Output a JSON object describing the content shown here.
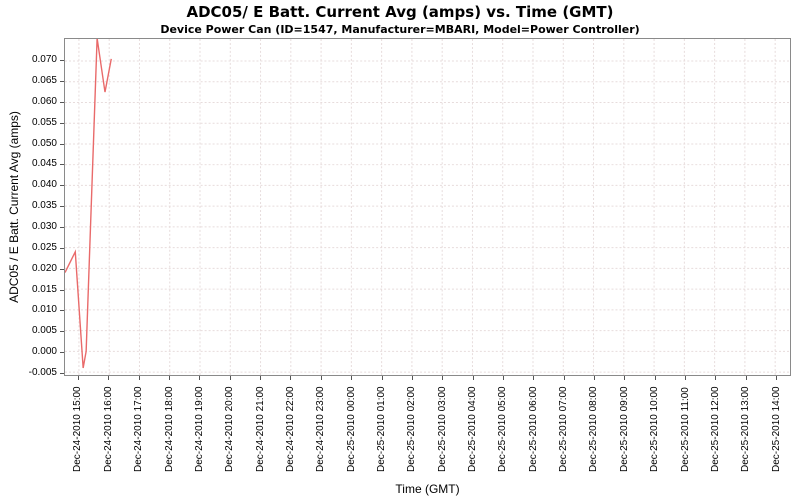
{
  "page": {
    "background": "#ffffff"
  },
  "chart_data": {
    "type": "line",
    "title": "ADC05/ E Batt. Current Avg (amps) vs. Time (GMT)",
    "subtitle": "Device Power Can (ID=1547, Manufacturer=MBARI, Model=Power Controller)",
    "xlabel": "Time (GMT)",
    "ylabel": "ADC05 / E Batt. Current Avg (amps)",
    "grid": true,
    "legend": "none",
    "colors": {
      "line": "#e96a6a",
      "grid": "#e7dcdc",
      "plot_border": "#8a8a8a",
      "tick": "#555555",
      "text": "#000000",
      "background": "#ffffff"
    },
    "ylim": [
      -0.0057,
      0.0753
    ],
    "xlim_hours": [
      -0.46,
      23.49
    ],
    "y_tick_values": [
      -0.005,
      0.0,
      0.005,
      0.01,
      0.015,
      0.02,
      0.025,
      0.03,
      0.035,
      0.04,
      0.045,
      0.05,
      0.055,
      0.06,
      0.065,
      0.07
    ],
    "y_tick_labels": [
      "-0.005",
      "0.000",
      "0.005",
      "0.010",
      "0.015",
      "0.020",
      "0.025",
      "0.030",
      "0.035",
      "0.040",
      "0.045",
      "0.050",
      "0.055",
      "0.060",
      "0.065",
      "0.070"
    ],
    "x_tick_labels": [
      "Dec-24-2010 15:00",
      "Dec-24-2010 16:00",
      "Dec-24-2010 17:00",
      "Dec-24-2010 18:00",
      "Dec-24-2010 19:00",
      "Dec-24-2010 20:00",
      "Dec-24-2010 21:00",
      "Dec-24-2010 22:00",
      "Dec-24-2010 23:00",
      "Dec-25-2010 00:00",
      "Dec-25-2010 01:00",
      "Dec-25-2010 02:00",
      "Dec-25-2010 03:00",
      "Dec-25-2010 04:00",
      "Dec-25-2010 05:00",
      "Dec-25-2010 06:00",
      "Dec-25-2010 07:00",
      "Dec-25-2010 08:00",
      "Dec-25-2010 09:00",
      "Dec-25-2010 10:00",
      "Dec-25-2010 11:00",
      "Dec-25-2010 12:00",
      "Dec-25-2010 13:00",
      "Dec-25-2010 14:00"
    ],
    "series": [
      {
        "name": "ADC05/ E Batt. Current Avg (amps)",
        "color": "#e96a6a",
        "points": [
          {
            "time_gmt": "Dec-24-2010 14:32",
            "t_hours": -0.46,
            "amps": 0.019
          },
          {
            "time_gmt": "Dec-24-2010 14:53",
            "t_hours": -0.12,
            "amps": 0.024
          },
          {
            "time_gmt": "Dec-24-2010 15:08",
            "t_hours": 0.14,
            "amps": -0.004
          },
          {
            "time_gmt": "Dec-24-2010 15:14",
            "t_hours": 0.24,
            "amps": 0.0
          },
          {
            "time_gmt": "Dec-24-2010 15:36",
            "t_hours": 0.6,
            "amps": 0.0755
          },
          {
            "time_gmt": "Dec-24-2010 15:51",
            "t_hours": 0.86,
            "amps": 0.0625
          },
          {
            "time_gmt": "Dec-24-2010 16:04",
            "t_hours": 1.07,
            "amps": 0.0705
          }
        ]
      }
    ]
  }
}
